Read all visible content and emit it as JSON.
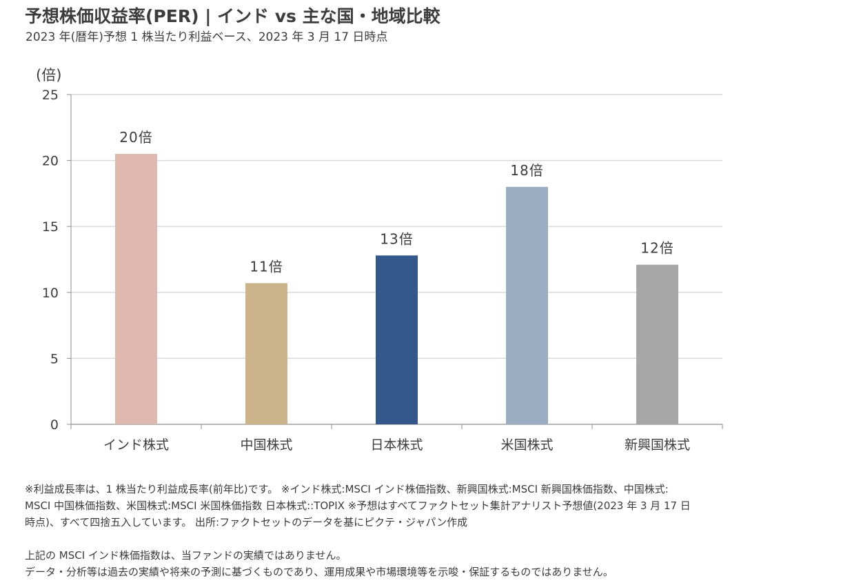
{
  "header": {
    "title": "予想株価収益率(PER) | インド vs 主な国・地域比較",
    "subtitle": "2023 年(暦年)予想 1 株当たり利益ベース、2023 年 3 月 17 日時点"
  },
  "chart_data": {
    "type": "bar",
    "title": "予想株価収益率(PER) | インド vs 主な国・地域比較",
    "subtitle": "2023 年(暦年)予想 1 株当たり利益ベース、2023 年 3 月 17 日時点",
    "xlabel": "",
    "ylabel": "(倍)",
    "ylim": [
      0,
      25
    ],
    "yticks": [
      0,
      5,
      10,
      15,
      20,
      25
    ],
    "grid": true,
    "legend": "none",
    "categories": [
      "インド株式",
      "中国株式",
      "日本株式",
      "米国株式",
      "新興国株式"
    ],
    "values": [
      20.5,
      10.7,
      12.8,
      18.0,
      12.1
    ],
    "data_labels": [
      "20倍",
      "11倍",
      "13倍",
      "18倍",
      "12倍"
    ],
    "colors": [
      "#DFB9B0",
      "#CBB48A",
      "#34578C",
      "#9BADC3",
      "#A6A6A6"
    ]
  },
  "footnotes": {
    "lines": [
      "※利益成長率は、1 株当たり利益成長率(前年比)です。 ※インド株式:MSCI インド株価指数、新興国株式:MSCI 新興国株価指数、中国株式:",
      "MSCI 中国株価指数、米国株式:MSCI 米国株価指数  日本株式::TOPIX  ※予想はすべてファクトセット集計アナリスト予想値(2023 年 3 月 17 日",
      "時点)、すべて四捨五入しています。  出所:ファクトセットのデータを基にピクテ・ジャパン作成"
    ],
    "disclaimers": [
      "上記の MSCI インド株価指数は、当ファンドの実績ではありません。",
      "データ・分析等は過去の実績や将来の予測に基づくものであり、運用成果や市場環境等を示唆・保証するものではありません。"
    ]
  }
}
